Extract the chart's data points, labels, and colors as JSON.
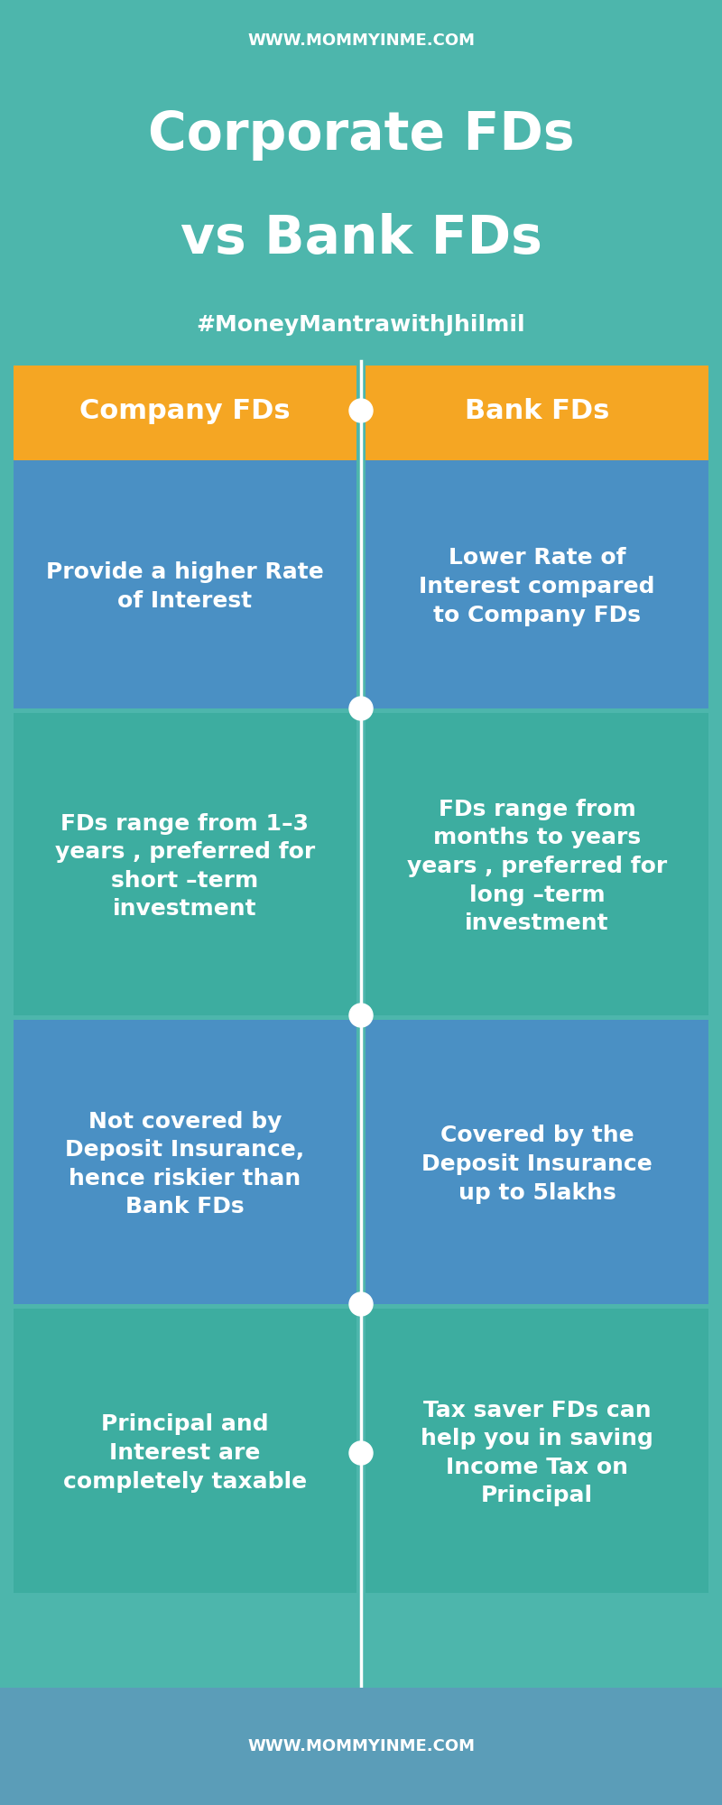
{
  "bg_color": "#4DB6AC",
  "footer_bg": "#5B9DB8",
  "website_text": "WWW.MOMMYINME.COM",
  "title_line1": "Corporate FDs",
  "title_line2": "vs Bank FDs",
  "hashtag": "#MoneyMantrawithJhilmil",
  "col1_header": "Company FDs",
  "col2_header": "Bank FDs",
  "header_color": "#F5A623",
  "cell_colors_left": [
    "#4A90C4",
    "#3DADA0",
    "#4A90C4",
    "#3DADA0"
  ],
  "cell_colors_right": [
    "#4A90C4",
    "#3DADA0",
    "#4A90C4",
    "#3DADA0"
  ],
  "dot_color": "#FFFFFF",
  "text_color": "#FFFFFF",
  "rows": [
    {
      "left": "Provide a higher Rate\nof Interest",
      "right": "Lower Rate of\nInterest compared\nto Company FDs"
    },
    {
      "left": "FDs range from 1–3\nyears , preferred for\nshort –term\ninvestment",
      "right": "FDs range from\nmonths to years\nyears , preferred for\nlong –term\ninvestment"
    },
    {
      "left": "Not covered by\nDeposit Insurance,\nhence riskier than\nBank FDs",
      "right": "Covered by the\nDeposit Insurance\nup to 5lakhs"
    },
    {
      "left": "Principal and\nInterest are\ncompletely taxable",
      "right": "Tax saver FDs can\nhelp you in saving\nIncome Tax on\nPrincipal"
    }
  ],
  "website_footer": "WWW.MOMMYINME.COM",
  "title_fontsize": 42,
  "hashtag_fontsize": 18,
  "header_fontsize": 22,
  "cell_fontsize": 18,
  "website_fontsize": 13
}
